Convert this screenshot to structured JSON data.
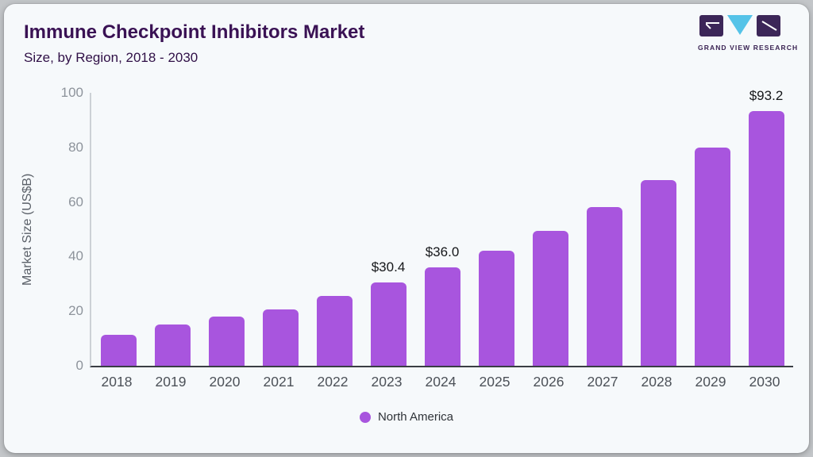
{
  "header": {
    "title": "Immune Checkpoint Inhibitors Market",
    "subtitle": "Size, by Region, 2018 - 2030"
  },
  "logo": {
    "text": "GRAND VIEW RESEARCH",
    "block_color": "#3c2658",
    "triangle_color": "#55c3e8"
  },
  "chart_data": {
    "type": "bar",
    "title": "Immune Checkpoint Inhibitors Market Size, by Region, 2018 - 2030",
    "categories": [
      "2018",
      "2019",
      "2020",
      "2021",
      "2022",
      "2023",
      "2024",
      "2025",
      "2026",
      "2027",
      "2028",
      "2029",
      "2030"
    ],
    "values": [
      11.2,
      15.2,
      18.0,
      20.6,
      25.7,
      30.4,
      36.0,
      42.3,
      49.5,
      58.2,
      68.1,
      79.9,
      93.2
    ],
    "point_labels": [
      null,
      null,
      null,
      null,
      null,
      "$30.4",
      "$36.0",
      null,
      null,
      null,
      null,
      null,
      "$93.2"
    ],
    "xlabel": "",
    "ylabel": "Market Size (US$B)",
    "yticks": [
      0,
      20,
      40,
      60,
      80,
      100
    ],
    "ylim": [
      0,
      100
    ],
    "grid": false,
    "bar_color": "#a855de",
    "legend": {
      "position": "bottom",
      "entries": [
        {
          "label": "North America",
          "color": "#a855de"
        }
      ]
    }
  }
}
